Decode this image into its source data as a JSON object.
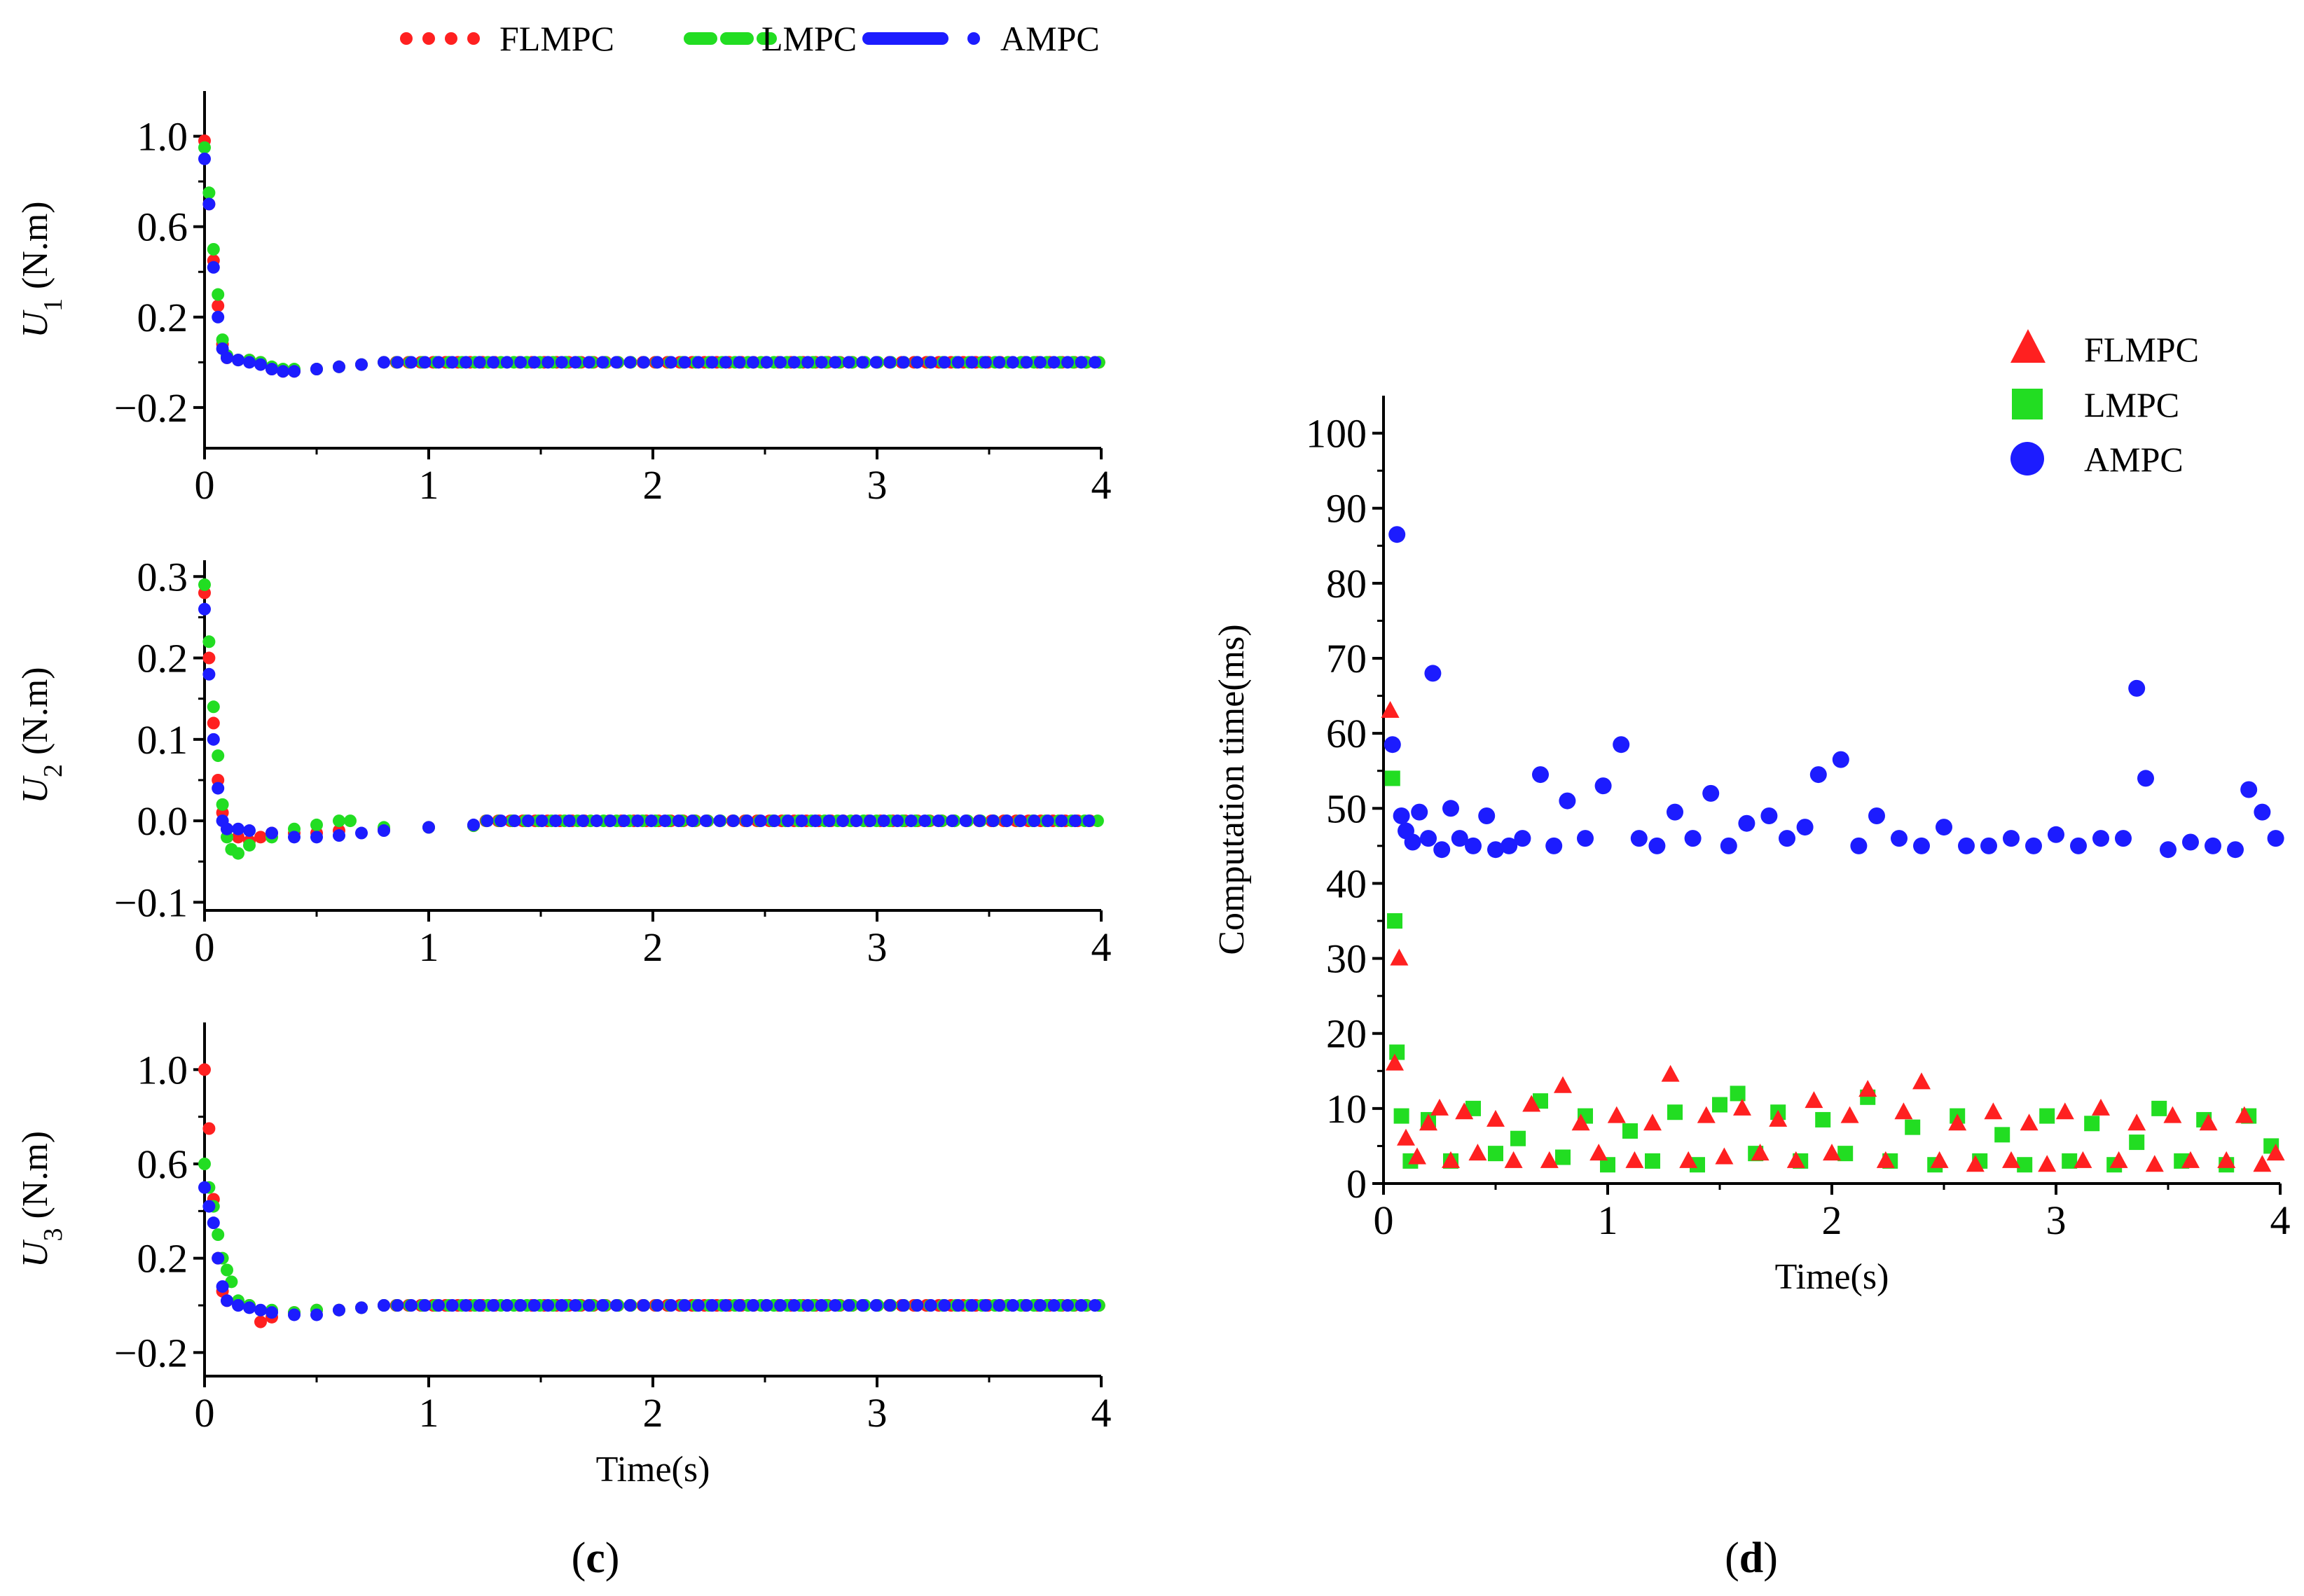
{
  "legend_top": [
    "FLMPC",
    "LMPC",
    "AMPC"
  ],
  "legend_right": [
    "FLMPC",
    "LMPC",
    "AMPC"
  ],
  "captions": {
    "c": "c",
    "d": "d"
  },
  "colors": {
    "FLMPC": "#ff2020",
    "LMPC": "#22dd22",
    "AMPC": "#1c1cff"
  },
  "chart_data": [
    {
      "id": "U1",
      "type": "scatter",
      "ylabel_symbol": "U",
      "ylabel_sub": "1",
      "ylabel_unit": " (N.m)",
      "xlabel": "",
      "xlim": [
        0,
        4
      ],
      "ylim": [
        -0.38,
        1.2
      ],
      "xticks": [
        "0",
        "1",
        "2",
        "3",
        "4"
      ],
      "yticks": [
        {
          "v": 1.0,
          "label": "1.0"
        },
        {
          "v": 0.6,
          "label": "0.6"
        },
        {
          "v": 0.2,
          "label": "0.2"
        },
        {
          "v": -0.2,
          "label": "−0.2"
        }
      ],
      "series": [
        {
          "name": "FLMPC",
          "x": [
            0,
            0.02,
            0.04,
            0.06,
            0.08,
            0.1,
            0.15,
            0.2,
            0.25,
            0.3,
            0.35,
            0.4,
            0.5,
            0.6,
            0.7,
            0.8
          ],
          "y": [
            0.98,
            0.7,
            0.45,
            0.25,
            0.08,
            0.02,
            0.01,
            0.01,
            0.0,
            -0.03,
            -0.04,
            -0.04,
            -0.03,
            -0.02,
            -0.01,
            0.0
          ]
        },
        {
          "name": "LMPC",
          "x": [
            0,
            0.02,
            0.04,
            0.06,
            0.08,
            0.1,
            0.15,
            0.2,
            0.25,
            0.3,
            0.35,
            0.4,
            0.5,
            0.6,
            0.7,
            0.8
          ],
          "y": [
            0.95,
            0.75,
            0.5,
            0.3,
            0.1,
            0.03,
            0.01,
            0.01,
            0.0,
            -0.02,
            -0.03,
            -0.03,
            -0.03,
            -0.02,
            -0.01,
            0.0
          ]
        },
        {
          "name": "AMPC",
          "x": [
            0,
            0.02,
            0.04,
            0.06,
            0.08,
            0.1,
            0.15,
            0.2,
            0.25,
            0.3,
            0.35,
            0.4,
            0.5,
            0.6,
            0.7,
            0.8
          ],
          "y": [
            0.9,
            0.7,
            0.42,
            0.2,
            0.06,
            0.02,
            0.01,
            0.0,
            -0.01,
            -0.03,
            -0.04,
            -0.04,
            -0.03,
            -0.02,
            -0.01,
            0.0
          ]
        }
      ],
      "steady": 0.0
    },
    {
      "id": "U2",
      "type": "scatter",
      "ylabel_symbol": "U",
      "ylabel_sub": "2",
      "ylabel_unit": " (N.m)",
      "xlabel": "",
      "xlim": [
        0,
        4
      ],
      "ylim": [
        -0.11,
        0.32
      ],
      "xticks": [
        "0",
        "1",
        "2",
        "3",
        "4"
      ],
      "yticks": [
        {
          "v": 0.3,
          "label": "0.3"
        },
        {
          "v": 0.2,
          "label": "0.2"
        },
        {
          "v": 0.1,
          "label": "0.1"
        },
        {
          "v": 0.0,
          "label": "0.0"
        },
        {
          "v": -0.1,
          "label": "−0.1"
        }
      ],
      "series": [
        {
          "name": "FLMPC",
          "x": [
            0,
            0.02,
            0.04,
            0.06,
            0.08,
            0.1,
            0.15,
            0.2,
            0.25,
            0.3,
            0.4,
            0.5,
            0.6,
            0.8,
            1.0,
            1.2
          ],
          "y": [
            0.28,
            0.2,
            0.12,
            0.05,
            0.01,
            -0.01,
            -0.02,
            -0.025,
            -0.02,
            -0.015,
            -0.015,
            -0.015,
            -0.012,
            -0.01,
            -0.008,
            -0.006
          ]
        },
        {
          "name": "LMPC",
          "x": [
            0,
            0.02,
            0.04,
            0.06,
            0.08,
            0.1,
            0.12,
            0.15,
            0.2,
            0.3,
            0.4,
            0.5,
            0.6,
            0.65,
            0.8,
            1.0,
            1.2
          ],
          "y": [
            0.29,
            0.22,
            0.14,
            0.08,
            0.02,
            -0.02,
            -0.035,
            -0.04,
            -0.03,
            -0.02,
            -0.01,
            -0.005,
            0.0,
            0.0,
            -0.008,
            -0.008,
            -0.006
          ]
        },
        {
          "name": "AMPC",
          "x": [
            0,
            0.02,
            0.04,
            0.06,
            0.08,
            0.1,
            0.15,
            0.2,
            0.3,
            0.4,
            0.5,
            0.6,
            0.7,
            0.8,
            1.0,
            1.2
          ],
          "y": [
            0.26,
            0.18,
            0.1,
            0.04,
            0.0,
            -0.01,
            -0.01,
            -0.012,
            -0.015,
            -0.02,
            -0.02,
            -0.018,
            -0.015,
            -0.012,
            -0.008,
            -0.005
          ]
        }
      ],
      "steady": 0.0
    },
    {
      "id": "U3",
      "type": "scatter",
      "ylabel_symbol": "U",
      "ylabel_sub": "3",
      "ylabel_unit": " (N.m)",
      "xlabel": "Time(s)",
      "xlim": [
        0,
        4
      ],
      "ylim": [
        -0.3,
        1.2
      ],
      "xticks": [
        "0",
        "1",
        "2",
        "3",
        "4"
      ],
      "yticks": [
        {
          "v": 1.0,
          "label": "1.0"
        },
        {
          "v": 0.6,
          "label": "0.6"
        },
        {
          "v": 0.2,
          "label": "0.2"
        },
        {
          "v": -0.2,
          "label": "−0.2"
        }
      ],
      "series": [
        {
          "name": "FLMPC",
          "x": [
            0,
            0.02,
            0.04,
            0.06,
            0.08,
            0.1,
            0.15,
            0.2,
            0.25,
            0.3,
            0.4,
            0.5,
            0.6,
            0.7,
            0.8
          ],
          "y": [
            1.0,
            0.75,
            0.45,
            0.2,
            0.06,
            0.02,
            0.01,
            0.0,
            -0.07,
            -0.05,
            -0.03,
            -0.02,
            -0.02,
            -0.01,
            0.0
          ]
        },
        {
          "name": "LMPC",
          "x": [
            0,
            0.02,
            0.04,
            0.06,
            0.08,
            0.1,
            0.12,
            0.15,
            0.2,
            0.3,
            0.4,
            0.5,
            0.6,
            0.7,
            0.8
          ],
          "y": [
            0.6,
            0.5,
            0.42,
            0.3,
            0.2,
            0.15,
            0.1,
            0.02,
            0.0,
            -0.02,
            -0.03,
            -0.02,
            -0.02,
            -0.01,
            0.0
          ]
        },
        {
          "name": "AMPC",
          "x": [
            0,
            0.02,
            0.04,
            0.06,
            0.08,
            0.1,
            0.15,
            0.2,
            0.25,
            0.3,
            0.4,
            0.5,
            0.6,
            0.7,
            0.8
          ],
          "y": [
            0.5,
            0.42,
            0.35,
            0.2,
            0.08,
            0.02,
            0.0,
            -0.01,
            -0.02,
            -0.03,
            -0.04,
            -0.04,
            -0.02,
            -0.01,
            0.0
          ]
        }
      ],
      "steady": 0.0
    },
    {
      "id": "time",
      "type": "scatter",
      "ylabel": "Computation  time(ms)",
      "xlabel": "Time(s)",
      "xlim": [
        0,
        4
      ],
      "ylim": [
        0,
        105
      ],
      "xticks": [
        "0",
        "1",
        "2",
        "3",
        "4"
      ],
      "yticks": [
        {
          "v": 0,
          "label": "0"
        },
        {
          "v": 10,
          "label": "10"
        },
        {
          "v": 20,
          "label": "20"
        },
        {
          "v": 30,
          "label": "30"
        },
        {
          "v": 40,
          "label": "40"
        },
        {
          "v": 50,
          "label": "50"
        },
        {
          "v": 60,
          "label": "60"
        },
        {
          "v": 70,
          "label": "70"
        },
        {
          "v": 80,
          "label": "80"
        },
        {
          "v": 90,
          "label": "90"
        },
        {
          "v": 100,
          "label": "100"
        }
      ],
      "series": [
        {
          "name": "AMPC",
          "marker": "circle",
          "x": [
            0.04,
            0.06,
            0.08,
            0.1,
            0.13,
            0.16,
            0.2,
            0.22,
            0.26,
            0.3,
            0.34,
            0.4,
            0.46,
            0.5,
            0.56,
            0.62,
            0.7,
            0.76,
            0.82,
            0.9,
            0.98,
            1.06,
            1.14,
            1.22,
            1.3,
            1.38,
            1.46,
            1.54,
            1.62,
            1.72,
            1.8,
            1.88,
            1.94,
            2.04,
            2.12,
            2.2,
            2.3,
            2.4,
            2.5,
            2.6,
            2.7,
            2.8,
            2.9,
            3.0,
            3.1,
            3.2,
            3.3,
            3.36,
            3.4,
            3.5,
            3.6,
            3.7,
            3.8,
            3.86,
            3.92,
            3.98
          ],
          "y": [
            58.5,
            86.5,
            49.0,
            47.0,
            45.5,
            49.5,
            46.0,
            68.0,
            44.5,
            50.0,
            46.0,
            45.0,
            49.0,
            44.5,
            45.0,
            46.0,
            54.5,
            45.0,
            51.0,
            46.0,
            53.0,
            58.5,
            46.0,
            45.0,
            49.5,
            46.0,
            52.0,
            45.0,
            48.0,
            49.0,
            46.0,
            47.5,
            54.5,
            56.5,
            45.0,
            49.0,
            46.0,
            45.0,
            47.5,
            45.0,
            45.0,
            46.0,
            45.0,
            46.5,
            45.0,
            46.0,
            46.0,
            66.0,
            54.0,
            44.5,
            45.5,
            45.0,
            44.5,
            52.5,
            49.5,
            46.0
          ]
        },
        {
          "name": "LMPC",
          "marker": "square",
          "x": [
            0.04,
            0.05,
            0.06,
            0.08,
            0.12,
            0.2,
            0.3,
            0.4,
            0.5,
            0.6,
            0.7,
            0.8,
            0.9,
            1.0,
            1.1,
            1.2,
            1.3,
            1.4,
            1.5,
            1.58,
            1.66,
            1.76,
            1.86,
            1.96,
            2.06,
            2.16,
            2.26,
            2.36,
            2.46,
            2.56,
            2.66,
            2.76,
            2.86,
            2.96,
            3.06,
            3.16,
            3.26,
            3.36,
            3.46,
            3.56,
            3.66,
            3.76,
            3.86,
            3.96
          ],
          "y": [
            54.0,
            35.0,
            17.5,
            9.0,
            3.0,
            8.5,
            3.0,
            10.0,
            4.0,
            6.0,
            11.0,
            3.5,
            9.0,
            2.5,
            7.0,
            3.0,
            9.5,
            2.5,
            10.5,
            12.0,
            4.0,
            9.5,
            3.0,
            8.5,
            4.0,
            11.5,
            3.0,
            7.5,
            2.5,
            9.0,
            3.0,
            6.5,
            2.5,
            9.0,
            3.0,
            8.0,
            2.5,
            5.5,
            10.0,
            3.0,
            8.5,
            2.5,
            9.0,
            5.0
          ]
        },
        {
          "name": "FLMPC",
          "marker": "triangle",
          "x": [
            0.03,
            0.05,
            0.07,
            0.1,
            0.15,
            0.2,
            0.25,
            0.3,
            0.36,
            0.42,
            0.5,
            0.58,
            0.66,
            0.74,
            0.8,
            0.88,
            0.96,
            1.04,
            1.12,
            1.2,
            1.28,
            1.36,
            1.44,
            1.52,
            1.6,
            1.68,
            1.76,
            1.84,
            1.92,
            2.0,
            2.08,
            2.16,
            2.24,
            2.32,
            2.4,
            2.48,
            2.56,
            2.64,
            2.72,
            2.8,
            2.88,
            2.96,
            3.04,
            3.12,
            3.2,
            3.28,
            3.36,
            3.44,
            3.52,
            3.6,
            3.68,
            3.76,
            3.84,
            3.92,
            3.98
          ],
          "y": [
            63.0,
            16.0,
            30.0,
            6.0,
            3.5,
            8.0,
            10.0,
            3.0,
            9.5,
            4.0,
            8.5,
            3.0,
            10.5,
            3.0,
            13.0,
            8.0,
            4.0,
            9.0,
            3.0,
            8.0,
            14.5,
            3.0,
            9.0,
            3.5,
            10.0,
            4.0,
            8.5,
            3.0,
            11.0,
            4.0,
            9.0,
            12.5,
            3.0,
            9.5,
            13.5,
            3.0,
            8.0,
            2.5,
            9.5,
            3.0,
            8.0,
            2.5,
            9.5,
            3.0,
            10.0,
            3.0,
            8.0,
            2.5,
            9.0,
            3.0,
            8.0,
            3.0,
            9.0,
            2.5,
            4.0
          ]
        }
      ]
    }
  ]
}
